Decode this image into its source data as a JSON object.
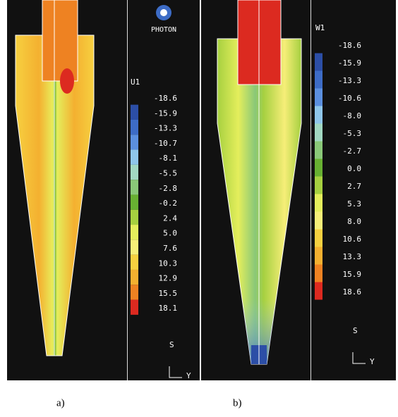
{
  "panels": [
    {
      "logo": "PHOTON",
      "legend": {
        "title": "U1",
        "labels": [
          "-18.6",
          "-15.9",
          "-13.3",
          "-10.7",
          "-8.1",
          "-5.5",
          "-2.8",
          "-0.2",
          "2.4",
          "5.0",
          "7.6",
          "10.3",
          "12.9",
          "15.5",
          "18.1"
        ]
      },
      "axis_s": "S",
      "axis_y": "Y",
      "caption": "a)"
    },
    {
      "legend": {
        "title": "W1",
        "labels": [
          "-18.6",
          "-15.9",
          "-13.3",
          "-10.6",
          "-8.0",
          "-5.3",
          "-2.7",
          "0.0",
          "2.7",
          "5.3",
          "8.0",
          "10.6",
          "13.3",
          "15.9",
          "18.6"
        ]
      },
      "axis_s": "S",
      "axis_y": "Y",
      "caption": "b)"
    }
  ],
  "legend_colors": [
    "#2c4ea6",
    "#3d6cc6",
    "#5b8fdf",
    "#8fc6ea",
    "#a2d8c2",
    "#8ac878",
    "#68b032",
    "#a6d040",
    "#e4ee5c",
    "#f6ee78",
    "#f6d040",
    "#f4b030",
    "#ee8222",
    "#dc2a20"
  ]
}
